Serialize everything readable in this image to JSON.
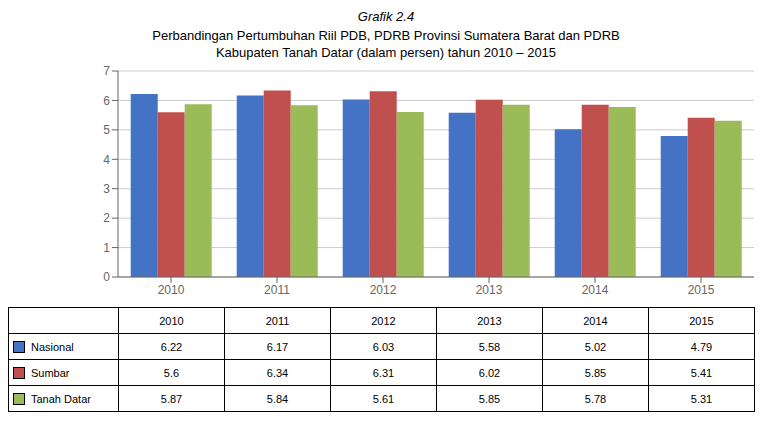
{
  "chart_data": {
    "type": "bar",
    "title": "Grafik 2.4",
    "subtitle": "Perbandingan Pertumbuhan Riil PDB, PDRB Provinsi Sumatera Barat dan PDRB Kabupaten Tanah Datar (dalam persen) tahun 2010 – 2015",
    "categories": [
      "2010",
      "2011",
      "2012",
      "2013",
      "2014",
      "2015"
    ],
    "series": [
      {
        "name": "Nasional",
        "color": "#4472C4",
        "values": [
          6.22,
          6.17,
          6.03,
          5.58,
          5.02,
          4.79
        ]
      },
      {
        "name": "Sumbar",
        "color": "#C0504D",
        "values": [
          5.6,
          6.34,
          6.31,
          6.02,
          5.85,
          5.41
        ]
      },
      {
        "name": "Tanah Datar",
        "color": "#9BBB59",
        "values": [
          5.87,
          5.84,
          5.61,
          5.85,
          5.78,
          5.31
        ]
      }
    ],
    "ylim": [
      0,
      7
    ],
    "yticks": [
      0,
      1,
      2,
      3,
      4,
      5,
      6,
      7
    ],
    "grid": true
  }
}
